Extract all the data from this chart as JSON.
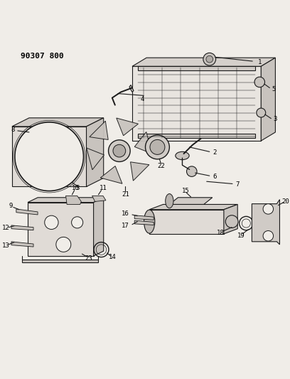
{
  "title": "90307 800",
  "bg_color": "#f0ede8",
  "line_color": "#1a1a1a",
  "text_color": "#000000",
  "figsize": [
    4.08,
    5.33
  ],
  "dpi": 100
}
